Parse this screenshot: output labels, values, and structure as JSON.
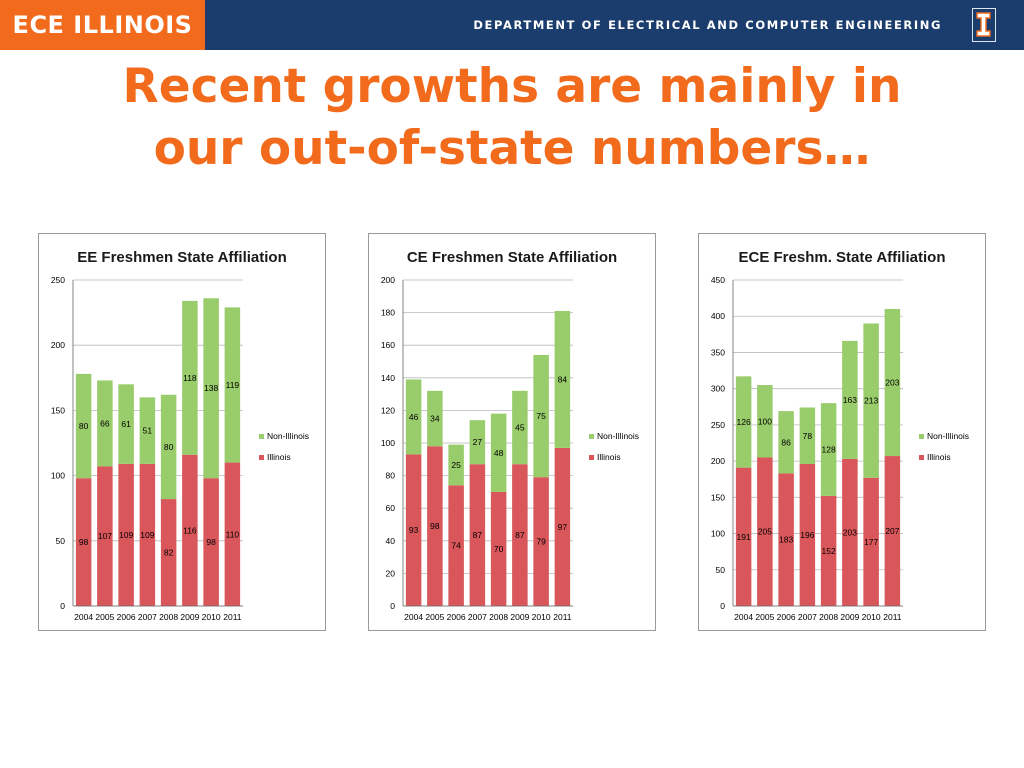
{
  "header": {
    "logo_text": "ECE ILLINOIS",
    "department": "DEPARTMENT OF ELECTRICAL AND COMPUTER ENGINEERING",
    "brand_colors": {
      "orange": "#f26b1d",
      "navy": "#1b3d6e"
    },
    "emblem_icon": "block-i-icon"
  },
  "slide": {
    "title_line1": "Recent growths are mainly in",
    "title_line2": "our out-of-state numbers…"
  },
  "chart_data": [
    {
      "type": "bar",
      "stacked": true,
      "title": "EE Freshmen State Affiliation",
      "categories": [
        "2004",
        "2005",
        "2006",
        "2007",
        "2008",
        "2009",
        "2010",
        "2011"
      ],
      "series": [
        {
          "name": "Illinois",
          "color": "#d9565a",
          "values": [
            98,
            107,
            109,
            109,
            82,
            116,
            98,
            110
          ]
        },
        {
          "name": "Non-Illinois",
          "color": "#99cc6b",
          "values": [
            80,
            66,
            61,
            51,
            80,
            118,
            138,
            119
          ]
        }
      ],
      "ylim": [
        0,
        250
      ],
      "yticks": [
        0,
        50,
        100,
        150,
        200,
        250
      ],
      "grid": true,
      "legend": "right"
    },
    {
      "type": "bar",
      "stacked": true,
      "title": "CE Freshmen State Affiliation",
      "categories": [
        "2004",
        "2005",
        "2006",
        "2007",
        "2008",
        "2009",
        "2010",
        "2011"
      ],
      "series": [
        {
          "name": "Illinois",
          "color": "#d9565a",
          "values": [
            93,
            98,
            74,
            87,
            70,
            87,
            79,
            97
          ]
        },
        {
          "name": "Non-Illinois",
          "color": "#99cc6b",
          "values": [
            46,
            34,
            25,
            27,
            48,
            45,
            75,
            84
          ]
        }
      ],
      "ylim": [
        0,
        200
      ],
      "yticks": [
        0,
        20,
        40,
        60,
        80,
        100,
        120,
        140,
        160,
        180,
        200
      ],
      "grid": true,
      "legend": "right"
    },
    {
      "type": "bar",
      "stacked": true,
      "title": "ECE Freshm. State Affiliation",
      "categories": [
        "2004",
        "2005",
        "2006",
        "2007",
        "2008",
        "2009",
        "2010",
        "2011"
      ],
      "series": [
        {
          "name": "Illinois",
          "color": "#d9565a",
          "values": [
            191,
            205,
            183,
            196,
            152,
            203,
            177,
            207
          ]
        },
        {
          "name": "Non-Illinois",
          "color": "#99cc6b",
          "values": [
            126,
            100,
            86,
            78,
            128,
            163,
            213,
            203
          ]
        }
      ],
      "ylim": [
        0,
        450
      ],
      "yticks": [
        0,
        50,
        100,
        150,
        200,
        250,
        300,
        350,
        400,
        450
      ],
      "grid": true,
      "legend": "right"
    }
  ]
}
